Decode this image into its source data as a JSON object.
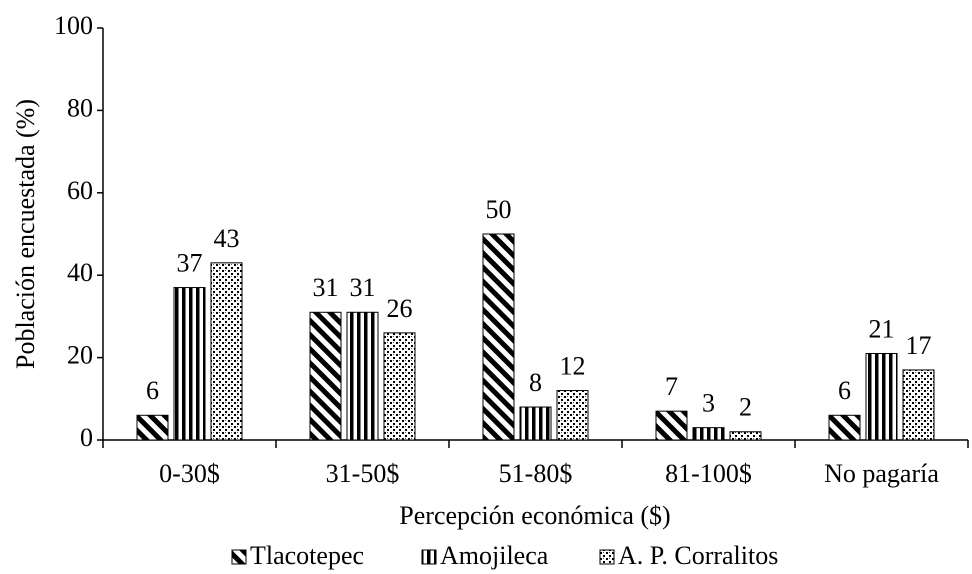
{
  "chart_data": {
    "type": "bar",
    "x_label": "Percepción económica ($)",
    "y_label": "Población encuestada  (%)",
    "categories": [
      "0-30$",
      "31-50$",
      "51-80$",
      "81-100$",
      "No pagaría"
    ],
    "series": [
      {
        "name": "Tlacotepec",
        "color": "#000000",
        "values": [
          6,
          31,
          50,
          7,
          6
        ]
      },
      {
        "name": "Amojileca",
        "color": "#000000",
        "values": [
          37,
          31,
          8,
          3,
          21
        ]
      },
      {
        "name": "A. P. Corralitos",
        "color": "#000000",
        "values": [
          43,
          26,
          12,
          2,
          17
        ]
      }
    ],
    "ylim": [
      0,
      100
    ],
    "yticks": [
      0,
      20,
      40,
      60,
      80,
      100
    ],
    "grid": false,
    "legend": "bottom"
  }
}
